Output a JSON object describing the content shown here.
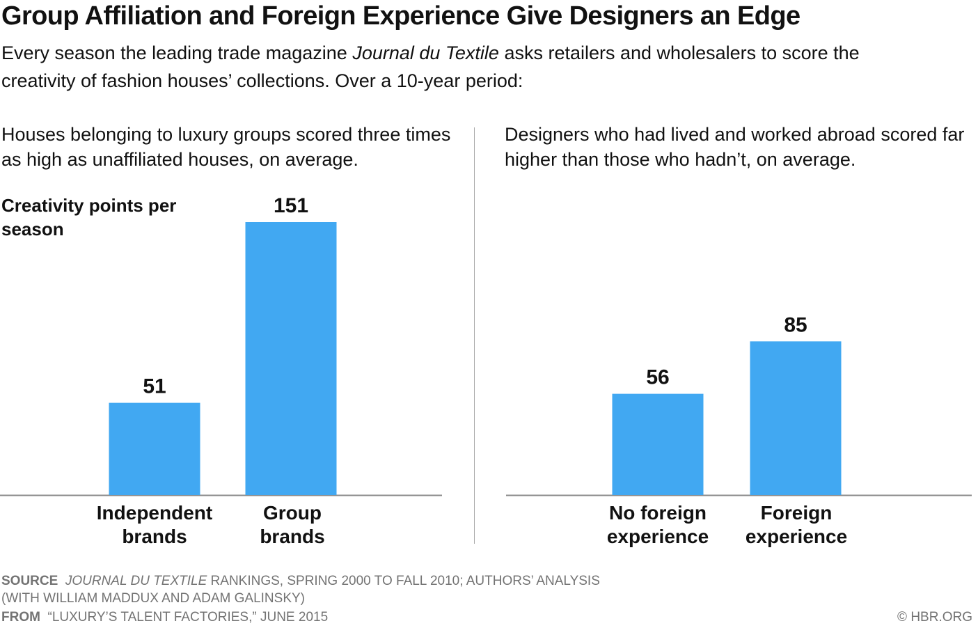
{
  "title": "Group Affiliation and Foreign Experience Give Designers an Edge",
  "subtitle": {
    "part1": "Every season the leading trade magazine ",
    "italic": "Journal du Textile",
    "part2": " asks retailers and wholesalers to score the creativity of fashion houses’ collections. Over a 10-year period:"
  },
  "y_label": "Creativity points per season",
  "colors": {
    "bar": "#41a8f2",
    "text": "#111111",
    "footer": "#737373",
    "axis": "#8a8a8a"
  },
  "chart_data": [
    {
      "type": "bar",
      "title": "Houses belonging to luxury groups scored three times as high as unaffiliated houses, on average.",
      "ylabel": "Creativity points per season",
      "categories": [
        "Independent brands",
        "Group brands"
      ],
      "category_lines": [
        [
          "Independent",
          "brands"
        ],
        [
          "Group",
          "brands"
        ]
      ],
      "values": [
        51,
        151
      ],
      "ylim": [
        0,
        151
      ],
      "grid": false
    },
    {
      "type": "bar",
      "title": "Designers who had lived and worked abroad scored far higher than those who hadn’t, on average.",
      "ylabel": "Creativity points per season",
      "categories": [
        "No foreign experience",
        "Foreign experience"
      ],
      "category_lines": [
        [
          "No foreign",
          "experience"
        ],
        [
          "Foreign",
          "experience"
        ]
      ],
      "values": [
        56,
        85
      ],
      "ylim": [
        0,
        151
      ],
      "grid": false
    }
  ],
  "footer": {
    "source_label": "SOURCE",
    "source_italic": "JOURNAL DU TEXTILE",
    "source_rest": " RANKINGS, SPRING 2000 TO FALL 2010; AUTHORS’ ANALYSIS",
    "source_line2": "(WITH WILLIAM MADDUX AND ADAM GALINSKY)",
    "from_label": "FROM",
    "from_text": "“LUXURY’S TALENT FACTORIES,” JUNE 2015",
    "copyright": "© HBR.ORG"
  }
}
